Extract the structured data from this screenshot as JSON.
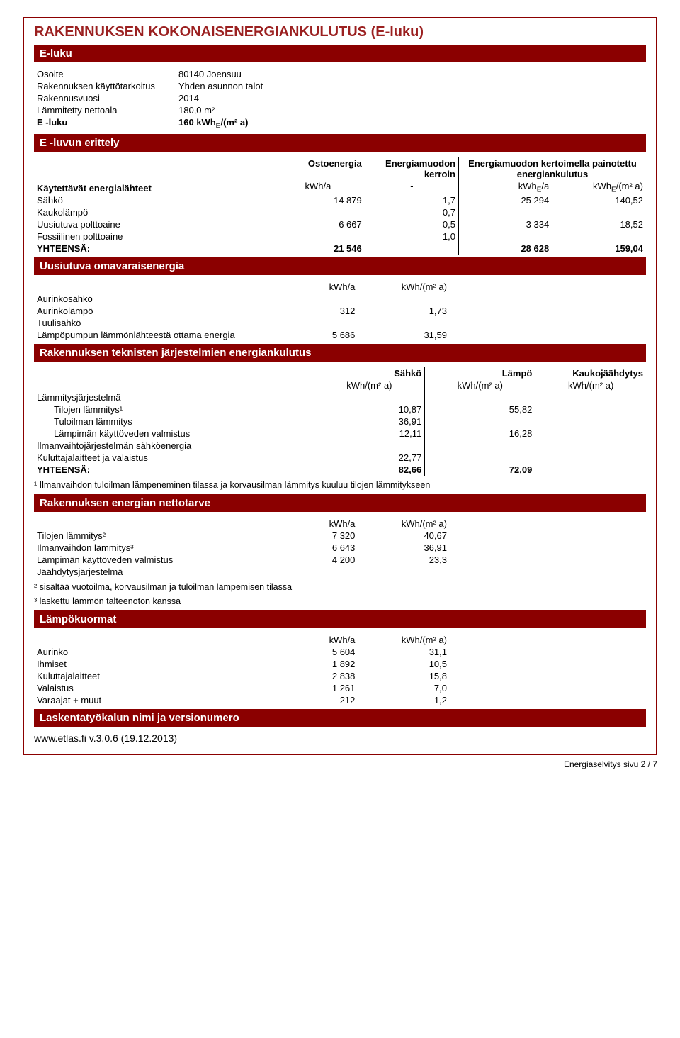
{
  "title": "RAKENNUKSEN KOKONAISENERGIANKULUTUS (E-luku)",
  "sec1": {
    "title": "E-luku",
    "rows": {
      "osoite_l": "Osoite",
      "osoite_v": "80140 Joensuu",
      "kaytto_l": "Rakennuksen käyttötarkoitus",
      "kaytto_v": "Yhden asunnon talot",
      "vuosi_l": "Rakennusvuosi",
      "vuosi_v": "2014",
      "netto_l": "Lämmitetty nettoala",
      "netto_v": "180,0",
      "netto_u": "m²",
      "eluku_l": "E -luku",
      "eluku_v": "160",
      "eluku_u": "kWh",
      "eluku_u2": "/(m² a)"
    }
  },
  "sec2": {
    "title": "E -luvun erittely",
    "h_sources": "Käytettävät energialähteet",
    "h_osto": "Ostoenergia",
    "h_kerroin": "Energiamuodon kerroin",
    "h_painotettu": "Energiamuodon kertoimella painotettu energiankulutus",
    "u_kwha": "kWh/a",
    "u_kwhe": "kWh",
    "u_kwhe_sub": "E",
    "u_kwhe_suf": "/a",
    "u_kwhem2": "kWh",
    "u_kwhem2_sub": "E",
    "u_kwhem2_suf": "/(m² a)",
    "dash": "-",
    "rows": [
      {
        "l": "Sähkö",
        "a": "14 879",
        "b": "1,7",
        "c": "25 294",
        "d": "140,52"
      },
      {
        "l": "Kaukolämpö",
        "a": "",
        "b": "0,7",
        "c": "",
        "d": ""
      },
      {
        "l": "Uusiutuva polttoaine",
        "a": "6 667",
        "b": "0,5",
        "c": "3 334",
        "d": "18,52"
      },
      {
        "l": "Fossiilinen polttoaine",
        "a": "",
        "b": "1,0",
        "c": "",
        "d": ""
      }
    ],
    "total_l": "YHTEENSÄ:",
    "total_a": "21 546",
    "total_c": "28 628",
    "total_d": "159,04"
  },
  "sec3": {
    "title": "Uusiutuva omavaraisenergia",
    "h1": "kWh/a",
    "h2": "kWh/(m² a)",
    "rows": [
      {
        "l": "Aurinkosähkö",
        "a": "",
        "b": ""
      },
      {
        "l": "Aurinkolämpö",
        "a": "312",
        "b": "1,73"
      },
      {
        "l": "Tuulisähkö",
        "a": "",
        "b": ""
      },
      {
        "l": "Lämpöpumpun lämmönlähteestä ottama energia",
        "a": "5 686",
        "b": "31,59"
      }
    ]
  },
  "sec4": {
    "title": "Rakennuksen teknisten järjestelmien energiankulutus",
    "h_sahko": "Sähkö",
    "h_lampo": "Lämpö",
    "h_kauko": "Kaukojäähdytys",
    "u": "kWh/(m² a)",
    "rows": [
      {
        "l": "Lämmitysjärjestelmä",
        "a": "",
        "b": "",
        "c": "",
        "indent": false
      },
      {
        "l": "Tilojen lämmitys¹",
        "a": "10,87",
        "b": "55,82",
        "c": "",
        "indent": true
      },
      {
        "l": "Tuloilman lämmitys",
        "a": "36,91",
        "b": "",
        "c": "",
        "indent": true
      },
      {
        "l": "Lämpimän käyttöveden valmistus",
        "a": "12,11",
        "b": "16,28",
        "c": "",
        "indent": true
      },
      {
        "l": "Ilmanvaihtojärjestelmän sähköenergia",
        "a": "",
        "b": "",
        "c": "",
        "indent": false
      },
      {
        "l": "Kuluttajalaitteet ja valaistus",
        "a": "22,77",
        "b": "",
        "c": "",
        "indent": false
      }
    ],
    "total_l": "YHTEENSÄ:",
    "total_a": "82,66",
    "total_b": "72,09",
    "note": "¹ Ilmanvaihdon tuloilman lämpeneminen tilassa ja korvausilman lämmitys kuuluu tilojen lämmitykseen"
  },
  "sec5": {
    "title": "Rakennuksen energian nettotarve",
    "h1": "kWh/a",
    "h2": "kWh/(m² a)",
    "rows": [
      {
        "l": "Tilojen lämmitys²",
        "a": "7 320",
        "b": "40,67"
      },
      {
        "l": "Ilmanvaihdon lämmitys³",
        "a": "6 643",
        "b": "36,91"
      },
      {
        "l": "Lämpimän käyttöveden valmistus",
        "a": "4 200",
        "b": "23,3"
      },
      {
        "l": "Jäähdytysjärjestelmä",
        "a": "",
        "b": ""
      }
    ],
    "note1": "² sisältää vuotoilma, korvausilman ja tuloilman lämpemisen tilassa",
    "note2": "³ laskettu lämmön talteenoton kanssa"
  },
  "sec6": {
    "title": "Lämpökuormat",
    "h1": "kWh/a",
    "h2": "kWh/(m² a)",
    "rows": [
      {
        "l": "Aurinko",
        "a": "5 604",
        "b": "31,1"
      },
      {
        "l": "Ihmiset",
        "a": "1 892",
        "b": "10,5"
      },
      {
        "l": "Kuluttajalaitteet",
        "a": "2 838",
        "b": "15,8"
      },
      {
        "l": "Valaistus",
        "a": "1 261",
        "b": "7,0"
      },
      {
        "l": "Varaajat + muut",
        "a": "212",
        "b": "1,2"
      }
    ]
  },
  "sec7": {
    "title": "Laskentatyökalun nimi ja versionumero",
    "link": "www.etlas.fi v.3.0.6 (19.12.2013)"
  },
  "pagenum": "Energiaselvitys sivu 2 / 7"
}
